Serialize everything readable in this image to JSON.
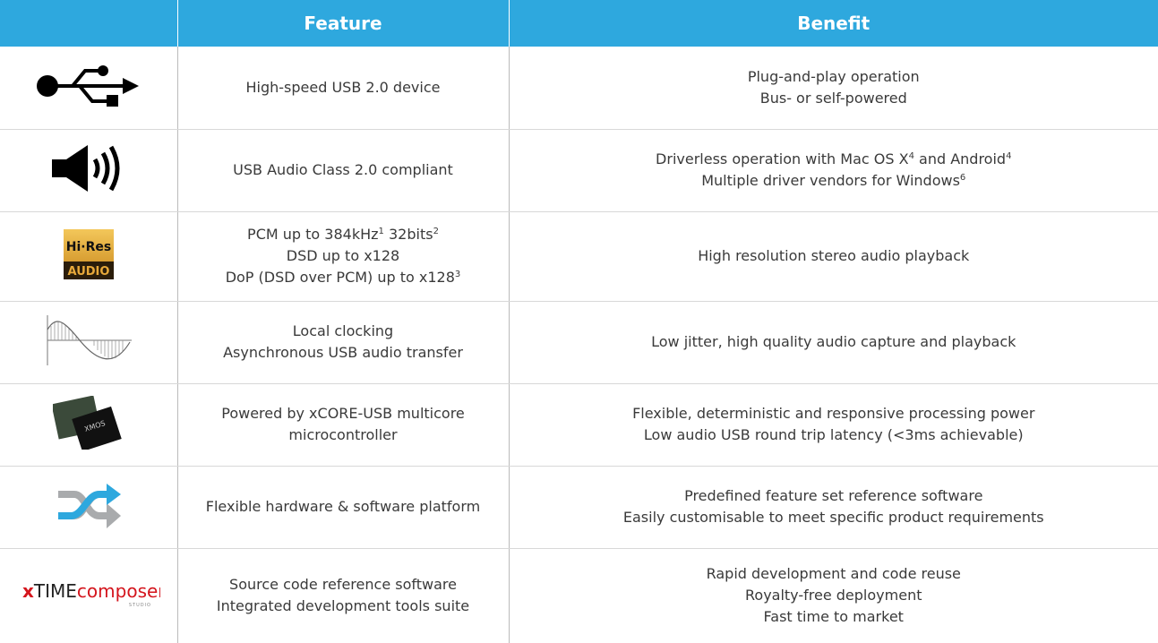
{
  "table": {
    "header": {
      "feature": "Feature",
      "benefit": "Benefit"
    },
    "rows": [
      {
        "feature": [
          [
            {
              "text": "High-speed USB 2.0 device"
            }
          ]
        ],
        "benefit": [
          [
            {
              "text": "Plug-and-play operation"
            }
          ],
          [
            {
              "text": "Bus- or self-powered"
            }
          ]
        ]
      },
      {
        "feature": [
          [
            {
              "text": "USB Audio Class 2.0 compliant"
            }
          ]
        ],
        "benefit": [
          [
            {
              "text": "Driverless operation with Mac OS X"
            },
            {
              "sup": "4"
            },
            {
              "text": " and Android"
            },
            {
              "sup": "4"
            }
          ],
          [
            {
              "text": "Multiple driver vendors for Windows"
            },
            {
              "sup": "6"
            }
          ]
        ]
      },
      {
        "icon_text": [
          "Hi·Res",
          "AUDIO"
        ],
        "feature": [
          [
            {
              "text": "PCM up to 384kHz"
            },
            {
              "sup": "1"
            },
            {
              "text": " 32bits"
            },
            {
              "sup": "2"
            }
          ],
          [
            {
              "text": "DSD up to x128"
            }
          ],
          [
            {
              "text": "DoP (DSD over PCM) up to x128"
            },
            {
              "sup": "3"
            }
          ]
        ],
        "benefit": [
          [
            {
              "text": "High resolution stereo audio playback"
            }
          ]
        ]
      },
      {
        "feature": [
          [
            {
              "text": "Local clocking"
            }
          ],
          [
            {
              "text": "Asynchronous USB audio transfer"
            }
          ]
        ],
        "benefit": [
          [
            {
              "text": "Low jitter, high quality audio capture and playback"
            }
          ]
        ]
      },
      {
        "icon_text": [
          "XMOS"
        ],
        "feature": [
          [
            {
              "text": "Powered by xCORE-USB multicore"
            }
          ],
          [
            {
              "text": "microcontroller"
            }
          ]
        ],
        "benefit": [
          [
            {
              "text": "Flexible, deterministic and responsive processing power"
            }
          ],
          [
            {
              "text": "Low audio USB round trip latency (<3ms achievable)"
            }
          ]
        ]
      },
      {
        "feature": [
          [
            {
              "text": "Flexible hardware & software platform"
            }
          ]
        ],
        "benefit": [
          [
            {
              "text": "Predefined feature set reference software"
            }
          ],
          [
            {
              "text": "Easily customisable to meet specific product requirements"
            }
          ]
        ]
      },
      {
        "icon_text": [
          "x",
          "TIME",
          "composer",
          "STUDIO"
        ],
        "feature": [
          [
            {
              "text": "Source code reference software"
            }
          ],
          [
            {
              "text": "Integrated development tools suite"
            }
          ]
        ],
        "benefit": [
          [
            {
              "text": "Rapid development and code reuse"
            }
          ],
          [
            {
              "text": "Royalty-free deployment"
            }
          ],
          [
            {
              "text": "Fast time to market"
            }
          ]
        ]
      }
    ]
  }
}
